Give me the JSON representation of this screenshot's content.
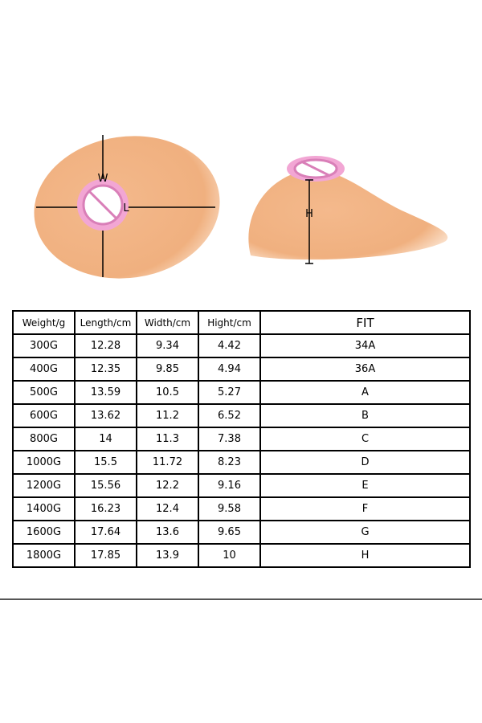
{
  "diagram": {
    "labels": [
      "W",
      "L",
      "H"
    ]
  },
  "table": {
    "header": [
      "Weight/g",
      "Length/cm",
      "Width/cm",
      "Hight/cm",
      "FIT"
    ],
    "rows": [
      [
        "300G",
        "12.28",
        "9.34",
        "4.42",
        "34A"
      ],
      [
        "400G",
        "12.35",
        "9.85",
        "4.94",
        "36A"
      ],
      [
        "500G",
        "13.59",
        "10.5",
        "5.27",
        "A"
      ],
      [
        "600G",
        "13.62",
        "11.2",
        "6.52",
        "B"
      ],
      [
        "800G",
        "14",
        "11.3",
        "7.38",
        "C"
      ],
      [
        "1000G",
        "15.5",
        "11.72",
        "8.23",
        "D"
      ],
      [
        "1200G",
        "15.56",
        "12.2",
        "9.16",
        "E"
      ],
      [
        "1400G",
        "16.23",
        "12.4",
        "9.58",
        "F"
      ],
      [
        "1600G",
        "17.64",
        "13.6",
        "9.65",
        "G"
      ],
      [
        "1800G",
        "17.85",
        "13.9",
        "10",
        "H"
      ]
    ]
  }
}
